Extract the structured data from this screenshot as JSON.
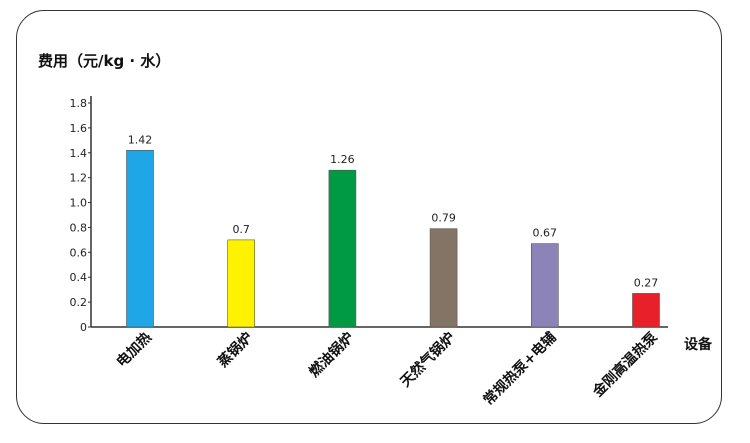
{
  "chart_data": {
    "type": "bar",
    "title": "",
    "ylabel": "费用（元/kg · 水）",
    "xlabel": "设备",
    "ylim": [
      0,
      1.8
    ],
    "yticks": [
      "0",
      "0.2",
      "0.4",
      "0.6",
      "0.8",
      "1.0",
      "1.2",
      "1.4",
      "1.6",
      "1.8"
    ],
    "categories": [
      "电加热",
      "蒸锅炉",
      "燃油锅炉",
      "天然气锅炉",
      "常规热泵+电辅",
      "金刚高温热泵"
    ],
    "values": [
      1.42,
      0.7,
      1.26,
      0.79,
      0.67,
      0.27
    ],
    "value_labels": [
      "1.42",
      "0.7",
      "1.26",
      "0.79",
      "0.67",
      "0.27"
    ],
    "colors": [
      "#1EA6E6",
      "#FFF200",
      "#009A44",
      "#847466",
      "#8C84B8",
      "#E8202A"
    ],
    "grid": false,
    "legend": "none"
  }
}
